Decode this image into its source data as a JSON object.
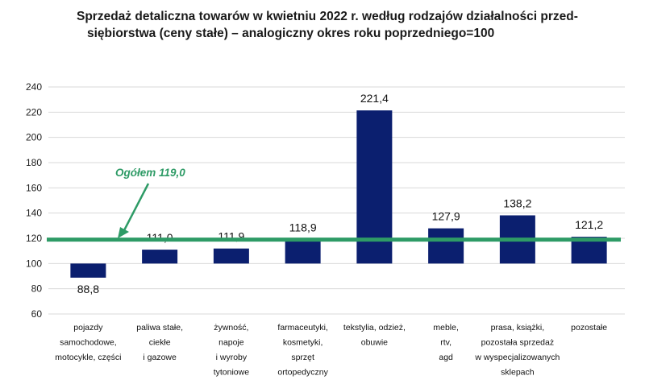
{
  "chart_data": {
    "type": "bar",
    "title_lines": [
      "Sprzedaż detaliczna towarów w kwietniu 2022 r. według rodzajów działalności przed-",
      "siębiorstwa (ceny stałe) – analogiczny okres roku poprzedniego=100"
    ],
    "categories": [
      [
        "pojazdy",
        "samochodowe,",
        "motocykle, części"
      ],
      [
        "paliwa stałe,",
        "ciekłe",
        "i gazowe"
      ],
      [
        "żywność,",
        "napoje",
        "i wyroby",
        "tytoniowe"
      ],
      [
        "farmaceutyki,",
        "kosmetyki,",
        "sprzęt",
        "ortopedyczny"
      ],
      [
        "tekstylia, odzież,",
        "obuwie"
      ],
      [
        "meble,",
        "rtv,",
        "agd"
      ],
      [
        "prasa, książki,",
        "pozostała sprzedaż",
        "w wyspecjalizowanych",
        "sklepach"
      ],
      [
        "pozostałe"
      ]
    ],
    "values": [
      88.8,
      111.0,
      111.9,
      118.9,
      221.4,
      127.9,
      138.2,
      121.2
    ],
    "value_labels": [
      "88,8",
      "111,0",
      "111,9",
      "118,9",
      "221,4",
      "127,9",
      "138,2",
      "121,2"
    ],
    "baseline": 100,
    "ylim": [
      60,
      240
    ],
    "yticks": [
      60,
      80,
      100,
      120,
      140,
      160,
      180,
      200,
      220,
      240
    ],
    "grid": true,
    "reference_line": {
      "value": 119.0,
      "label": "Ogółem 119,0"
    },
    "colors": {
      "bar": "#0b1f6f",
      "reference": "#2e9b66",
      "grid": "#d9d9d9"
    }
  }
}
